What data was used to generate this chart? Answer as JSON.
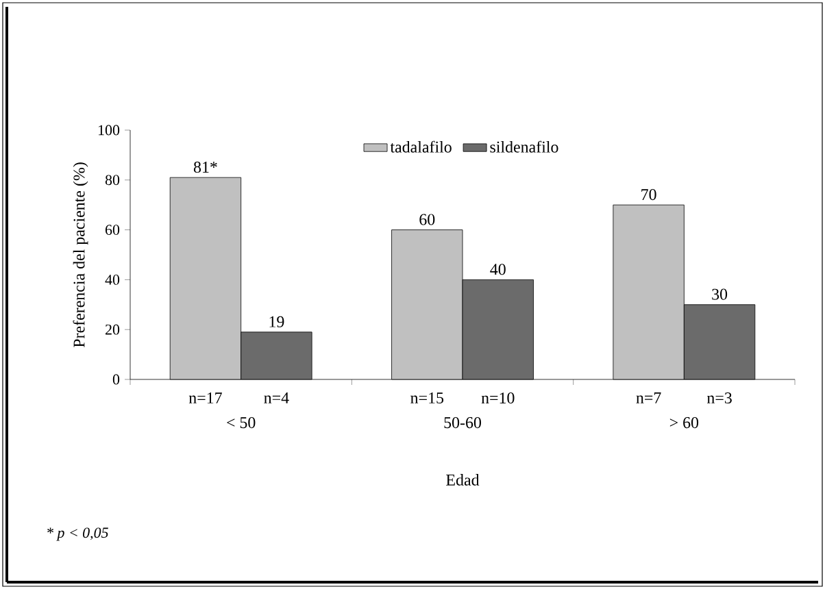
{
  "chart_data": {
    "type": "bar",
    "categories": [
      "< 50",
      "50-60",
      "> 60"
    ],
    "xlabel": "Edad",
    "ylabel": "Preferencia del paciente (%)",
    "ylim": [
      0,
      100
    ],
    "yticks": [
      0,
      20,
      40,
      60,
      80,
      100
    ],
    "legend": "top",
    "grid": false,
    "series": [
      {
        "name": "tadalafilo",
        "color": "#c0c0c0",
        "values": [
          81,
          60,
          70
        ],
        "value_labels": [
          "81*",
          "60",
          "70"
        ]
      },
      {
        "name": "sildenafilo",
        "color": "#6b6b6b",
        "values": [
          19,
          40,
          30
        ],
        "value_labels": [
          "19",
          "40",
          "30"
        ]
      }
    ],
    "annotations": [
      "n=17",
      "n=4",
      "n=15",
      "n=10",
      "n=7",
      "n=3",
      "* p < 0,05"
    ]
  }
}
